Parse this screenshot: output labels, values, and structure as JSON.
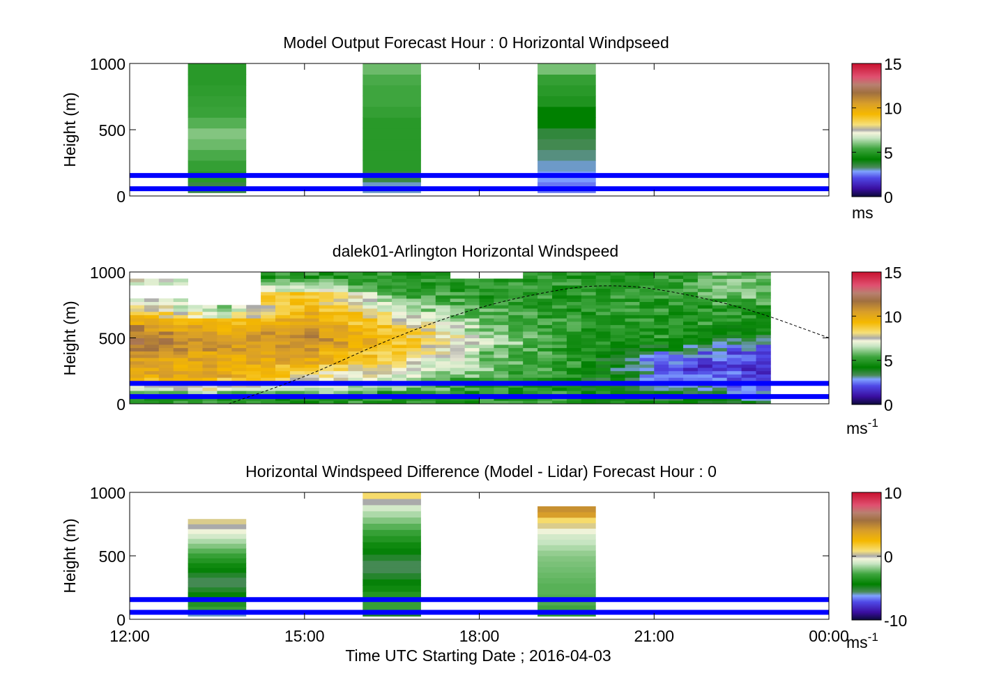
{
  "figure": {
    "xlabel": "Time UTC  Starting Date ; 2016-04-03",
    "x_tick_labels": [
      "12:00",
      "15:00",
      "18:00",
      "21:00",
      "00:00"
    ]
  },
  "chart_data": [
    {
      "type": "heatmap",
      "title": "Model Output   Forecast Hour : 0 Horizontal Windpseed",
      "ylabel": "Height (m)",
      "xlim_hours": [
        12,
        24
      ],
      "ylim": [
        0,
        1000
      ],
      "y_ticks": [
        0,
        500,
        1000
      ],
      "y_tick_labels": [
        "0",
        "500",
        "1000"
      ],
      "colorbar": {
        "min": 0,
        "max": 15,
        "ticks": [
          "0",
          "5",
          "10",
          "15"
        ],
        "unit_label": "ms"
      },
      "columns": [
        {
          "start_hour": 13.0,
          "end_hour": 14.0,
          "height_range": [
            25,
            1000
          ],
          "values_bottom_to_top": [
            3.5,
            5.0,
            5.2,
            5.5,
            5.8,
            6.0,
            5.6,
            5.3,
            5.2,
            5.1,
            5.0,
            5.0
          ]
        },
        {
          "start_hour": 16.0,
          "end_hour": 17.0,
          "height_range": [
            25,
            1000
          ],
          "values_bottom_to_top": [
            3.0,
            3.5,
            5.0,
            5.0,
            5.0,
            5.0,
            5.0,
            5.2,
            5.4,
            5.4,
            5.5,
            5.8
          ]
        },
        {
          "start_hour": 19.0,
          "end_hour": 20.0,
          "height_range": [
            25,
            1000
          ],
          "values_bottom_to_top": [
            2.5,
            2.8,
            3.0,
            3.2,
            3.4,
            3.6,
            4.2,
            4.2,
            4.8,
            5.0,
            5.2,
            5.9
          ]
        }
      ],
      "reference_lines_m": [
        55,
        155
      ]
    },
    {
      "type": "heatmap",
      "title": "dalek01-Arlington  Horizontal Windspeed",
      "ylabel": "Height (m)",
      "xlim_hours": [
        12,
        24
      ],
      "ylim": [
        0,
        1000
      ],
      "y_ticks": [
        0,
        500,
        1000
      ],
      "y_tick_labels": [
        "0",
        "500",
        "1000"
      ],
      "colorbar": {
        "min": 0,
        "max": 15,
        "ticks": [
          "0",
          "5",
          "10",
          "15"
        ],
        "unit_label": "ms",
        "unit_exponent": "-1"
      },
      "data_extent_hours": [
        12,
        23.0
      ],
      "column_width_hours": 0.25,
      "height_levels_m": [
        25,
        75,
        125,
        175,
        225,
        275,
        325,
        375,
        425,
        475,
        525,
        575,
        625,
        675,
        725,
        775,
        825,
        875,
        925,
        975
      ],
      "profiles_approx": [
        {
          "hour": 12.0,
          "values_bottom_to_top": [
            5,
            6,
            7,
            9,
            10,
            10,
            10.5,
            11,
            11.5,
            12,
            11.5,
            11,
            10,
            9,
            8,
            7,
            null,
            null,
            7,
            null
          ]
        },
        {
          "hour": 13.5,
          "values_bottom_to_top": [
            5,
            6,
            7.5,
            9,
            10,
            10,
            10,
            10,
            10.5,
            10.5,
            10,
            9.5,
            9,
            7,
            6,
            null,
            null,
            null,
            null,
            null
          ]
        },
        {
          "hour": 15.0,
          "values_bottom_to_top": [
            5,
            6,
            7,
            7.5,
            8,
            9,
            10,
            10,
            10.5,
            11,
            11,
            10.5,
            10,
            10,
            9.5,
            9,
            9,
            7,
            6,
            5
          ]
        },
        {
          "hour": 16.5,
          "values_bottom_to_top": [
            5,
            5,
            6,
            6.5,
            7,
            7.5,
            8,
            8.5,
            9,
            9,
            9,
            8.5,
            8,
            7.5,
            6.5,
            6,
            5.5,
            5,
            5,
            5
          ]
        },
        {
          "hour": 18.0,
          "values_bottom_to_top": [
            5,
            5,
            5,
            5,
            5.5,
            6,
            6,
            6,
            6,
            6.5,
            6.5,
            6,
            6,
            5.5,
            5.5,
            5,
            5,
            5,
            5,
            null
          ]
        },
        {
          "hour": 19.5,
          "values_bottom_to_top": [
            5,
            5,
            4.5,
            4.5,
            5,
            5,
            5,
            5,
            5,
            5,
            5,
            5,
            5,
            5,
            5,
            5,
            5,
            5,
            5,
            5
          ]
        },
        {
          "hour": 21.0,
          "values_bottom_to_top": [
            4,
            4,
            3.5,
            3,
            2.5,
            2,
            2.5,
            3,
            4,
            4.5,
            5,
            5,
            5,
            5,
            5,
            5,
            5,
            5,
            5,
            5
          ]
        },
        {
          "hour": 22.5,
          "values_bottom_to_top": [
            3.5,
            3,
            2.5,
            2,
            2,
            1.5,
            2,
            2,
            2.5,
            3,
            4,
            4.5,
            5,
            5,
            5,
            5.5,
            6,
            6,
            6,
            6
          ]
        }
      ],
      "reference_lines_m": [
        55,
        155
      ],
      "dashed_curve_points": [
        {
          "hour": 13.7,
          "height_m": 0
        },
        {
          "hour": 15.0,
          "height_m": 200
        },
        {
          "hour": 16.5,
          "height_m": 500
        },
        {
          "hour": 18.0,
          "height_m": 740
        },
        {
          "hour": 19.5,
          "height_m": 880
        },
        {
          "hour": 20.2,
          "height_m": 900
        },
        {
          "hour": 21.0,
          "height_m": 880
        },
        {
          "hour": 22.5,
          "height_m": 740
        },
        {
          "hour": 24.0,
          "height_m": 500
        }
      ]
    },
    {
      "type": "heatmap",
      "title": "Horizontal Windspeed Difference (Model - Lidar) Forecast Hour : 0",
      "ylabel": "Height (m)",
      "xlim_hours": [
        12,
        24
      ],
      "ylim": [
        0,
        1000
      ],
      "y_ticks": [
        0,
        500,
        1000
      ],
      "y_tick_labels": [
        "0",
        "500",
        "1000"
      ],
      "colorbar": {
        "min": -10,
        "max": 10,
        "ticks": [
          "-10",
          "0",
          "10"
        ],
        "unit_label": "ms",
        "unit_exponent": "-1"
      },
      "columns": [
        {
          "start_hour": 13.0,
          "end_hour": 14.0,
          "height_range": [
            25,
            790
          ],
          "values_bottom_to_top": [
            -6,
            -3,
            -3.5,
            -4,
            -4.5,
            -5,
            -5.5,
            -5.5,
            -5,
            -4.5,
            -4,
            -3.5,
            -3,
            -2.5,
            -2,
            -1.5,
            -1,
            -0.5,
            0,
            0.5
          ]
        },
        {
          "start_hour": 16.0,
          "end_hour": 17.0,
          "height_range": [
            25,
            1000
          ],
          "values_bottom_to_top": [
            -5,
            -3,
            -3,
            -3.5,
            -4,
            -4.5,
            -5,
            -5.5,
            -5.5,
            -5,
            -4.5,
            -4,
            -3.5,
            -3,
            -2.5,
            -2,
            -1.5,
            -1,
            0,
            1
          ]
        },
        {
          "start_hour": 19.0,
          "end_hour": 20.0,
          "height_range": [
            25,
            890
          ],
          "values_bottom_to_top": [
            -3,
            -2.8,
            -2.6,
            -2.6,
            -2.5,
            -2.5,
            -2.4,
            -2.3,
            -2.2,
            -2.1,
            -2,
            -1.8,
            -1.5,
            -1.2,
            -1,
            -0.5,
            0.5,
            1,
            4,
            4.5
          ]
        }
      ],
      "reference_lines_m": [
        55,
        155
      ]
    }
  ]
}
